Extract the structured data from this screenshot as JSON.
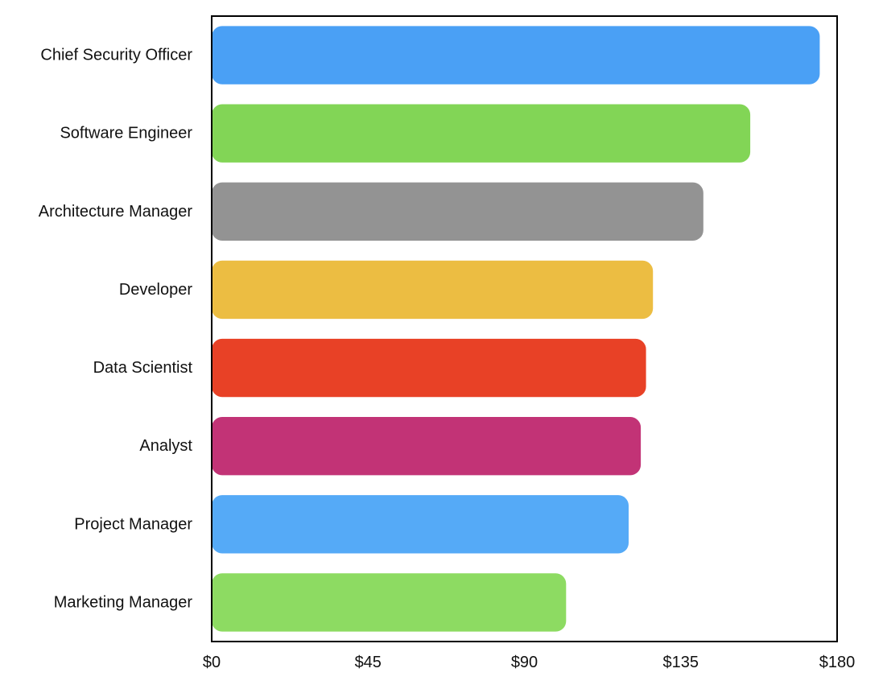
{
  "chart_data": {
    "type": "bar",
    "orientation": "horizontal",
    "title": "",
    "xlabel": "",
    "ylabel": "",
    "categories": [
      "Chief Security Officer",
      "Software Engineer",
      "Architecture Manager",
      "Developer",
      "Data Scientist",
      "Analyst",
      "Project Manager",
      "Marketing Manager"
    ],
    "values": [
      175,
      155,
      141.5,
      127,
      125,
      123.5,
      120,
      102
    ],
    "colors": [
      "#4aa0f5",
      "#82d556",
      "#939393",
      "#ecbd42",
      "#e84126",
      "#c23376",
      "#55aaf7",
      "#8ddb62"
    ],
    "xlim": [
      0,
      180
    ],
    "ticks": [
      0,
      45,
      90,
      135,
      180
    ],
    "tick_labels": [
      "$0",
      "$45",
      "$90",
      "$135",
      "$180"
    ],
    "grid": false,
    "legend": "none"
  }
}
